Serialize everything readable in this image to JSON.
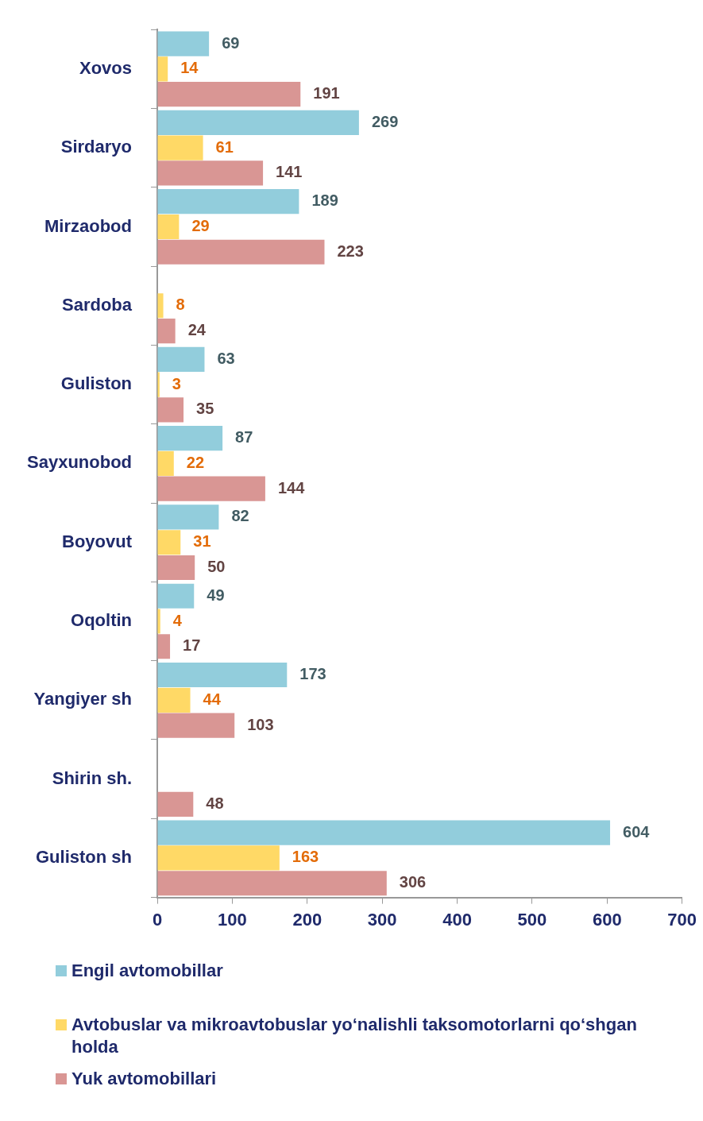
{
  "chart_data": {
    "type": "bar",
    "orientation": "horizontal",
    "categories": [
      "Xovos",
      "Sirdaryo",
      "Mirzaobod",
      "Sardoba",
      "Guliston",
      "Sayxunobod",
      "Boyovut",
      "Oqoltin",
      "Yangiyer sh",
      "Shirin sh.",
      "Guliston sh"
    ],
    "series": [
      {
        "name": "Engil avtomobillar",
        "color": "#92cddc",
        "values": [
          69,
          269,
          189,
          null,
          63,
          87,
          82,
          49,
          173,
          null,
          604
        ]
      },
      {
        "name": "Avtobuslar va mikroavtobuslar yo‘nalishli taksomotorlarni qo‘shgan holda",
        "color": "#ffd966",
        "values": [
          14,
          61,
          29,
          8,
          3,
          22,
          31,
          4,
          44,
          null,
          163
        ]
      },
      {
        "name": "Yuk avtomobillari",
        "color": "#d99694",
        "values": [
          191,
          141,
          223,
          24,
          35,
          144,
          50,
          17,
          103,
          48,
          306
        ]
      }
    ],
    "xlim": [
      0,
      700
    ],
    "xticks": [
      0,
      100,
      200,
      300,
      400,
      500,
      600,
      700
    ],
    "data_labels": true,
    "legend": "bottom",
    "grid": false
  }
}
